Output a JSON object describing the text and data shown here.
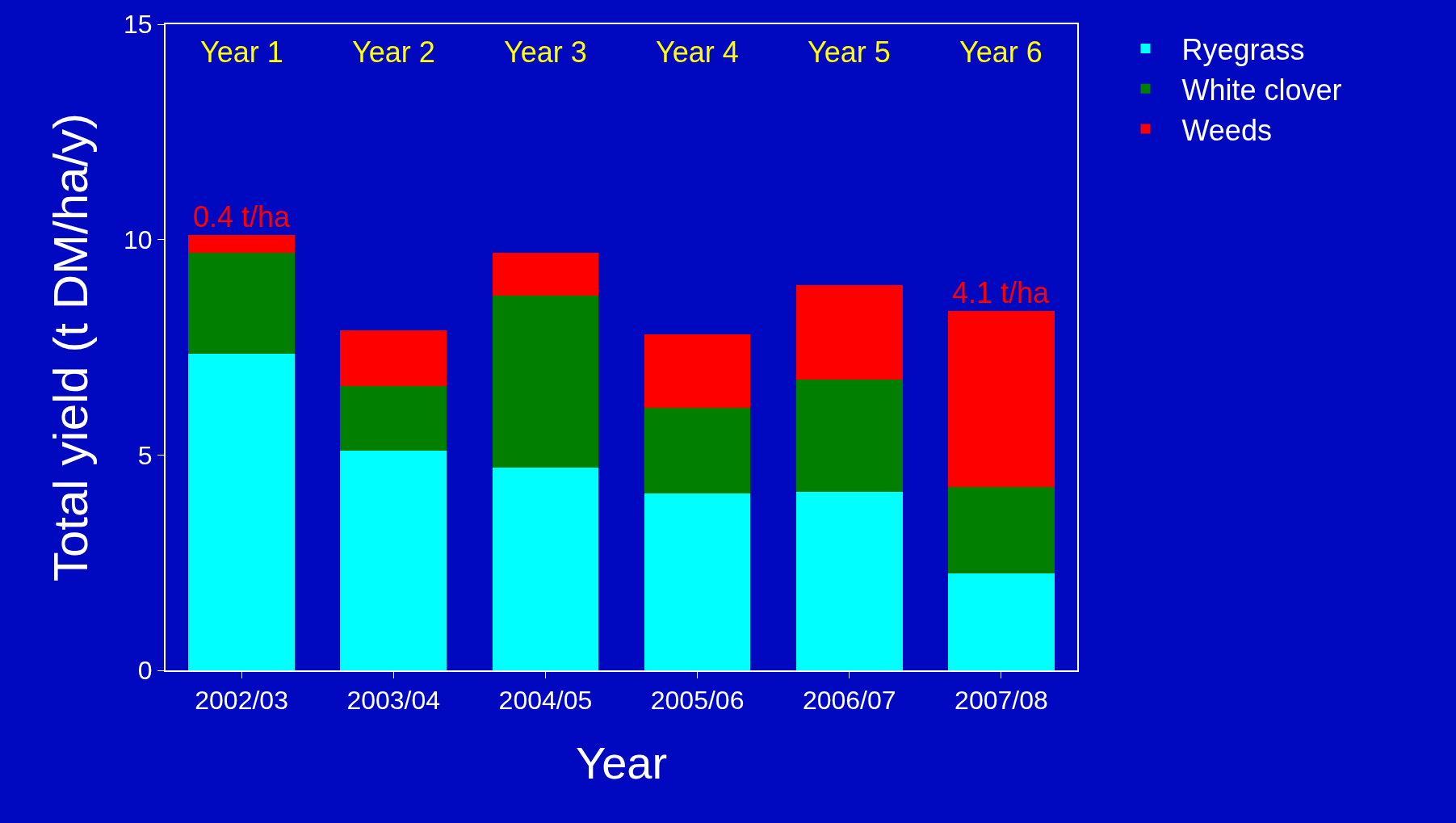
{
  "chart_data": {
    "type": "bar",
    "stacked": true,
    "xlabel": "Year",
    "ylabel": "Total yield (t DM/ha/y)",
    "categories": [
      "2002/03",
      "2003/04",
      "2004/05",
      "2005/06",
      "2006/07",
      "2007/08"
    ],
    "series": [
      {
        "name": "Ryegrass",
        "color": "#00ffff",
        "values": [
          7.35,
          5.1,
          4.7,
          4.1,
          4.15,
          2.25
        ]
      },
      {
        "name": "White clover",
        "color": "#007f00",
        "values": [
          2.35,
          1.5,
          4.0,
          2.0,
          2.6,
          2.0
        ]
      },
      {
        "name": "Weeds",
        "color": "#ff0000",
        "values": [
          0.4,
          1.3,
          1.0,
          1.7,
          2.2,
          4.1
        ]
      }
    ],
    "ylim": [
      0,
      15
    ],
    "yticks": [
      0,
      5,
      10,
      15
    ],
    "grid": false,
    "legend": "top right",
    "annotations": [
      {
        "text": "0.4 t/ha",
        "x": "2002/03",
        "y": 10.1
      },
      {
        "text": "4.1 t/ha",
        "x": "2007/08",
        "y": 8.35
      },
      "Year 1",
      "Year 2",
      "Year 3",
      "Year 4",
      "Year 5",
      "Year 6"
    ]
  }
}
